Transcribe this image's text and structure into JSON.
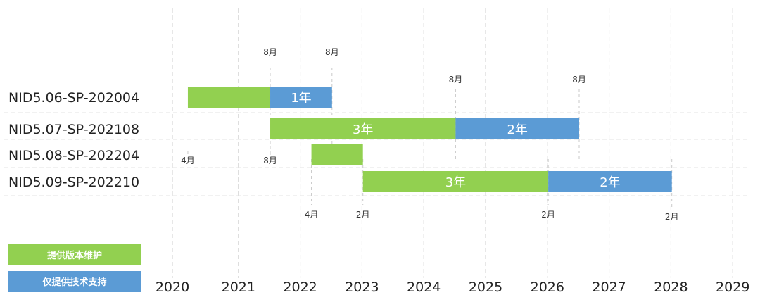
{
  "chart_data": {
    "type": "gantt",
    "years": [
      "2020",
      "2021",
      "2022",
      "2023",
      "2024",
      "2025",
      "2026",
      "2027",
      "2028",
      "2029"
    ],
    "legend": [
      {
        "label": "提供版本维护",
        "color": "#92D050"
      },
      {
        "label": "仅提供技术支持",
        "color": "#5B9BD5"
      }
    ],
    "rows": [
      {
        "label": "NID5.06-SP-202004",
        "segments": [
          {
            "series": 0,
            "start": "2020-04",
            "end": "2021-08",
            "label": ""
          },
          {
            "series": 1,
            "start": "2021-08",
            "end": "2022-08",
            "label": "1年"
          }
        ]
      },
      {
        "label": "NID5.07-SP-202108",
        "segments": [
          {
            "series": 0,
            "start": "2021-08",
            "end": "2024-08",
            "label": "3年"
          },
          {
            "series": 1,
            "start": "2024-08",
            "end": "2026-08",
            "label": "2年"
          }
        ]
      },
      {
        "label": "NID5.08-SP-202204",
        "segments": [
          {
            "series": 0,
            "start": "2022-04",
            "end": "2023-02",
            "label": ""
          }
        ]
      },
      {
        "label": "NID5.09-SP-202210",
        "segments": [
          {
            "series": 0,
            "start": "2023-02",
            "end": "2026-02",
            "label": "3年"
          },
          {
            "series": 1,
            "start": "2026-02",
            "end": "2028-02",
            "label": "2年"
          }
        ]
      }
    ],
    "markers": [
      {
        "date": "2020-04",
        "label": "4月",
        "slot": "mid"
      },
      {
        "date": "2021-08",
        "label": "8月",
        "slot": "top"
      },
      {
        "date": "2021-08",
        "label": "8月",
        "slot": "mid"
      },
      {
        "date": "2022-08",
        "label": "8月",
        "slot": "top"
      },
      {
        "date": "2022-04",
        "label": "4月",
        "slot": "low"
      },
      {
        "date": "2023-02",
        "label": "2月",
        "slot": "low"
      },
      {
        "date": "2024-08",
        "label": "8月",
        "slot": "upper"
      },
      {
        "date": "2026-08",
        "label": "8月",
        "slot": "upper"
      },
      {
        "date": "2026-02",
        "label": "2月",
        "slot": "low"
      },
      {
        "date": "2028-02",
        "label": "2月",
        "slot": "lower"
      }
    ],
    "grid": true,
    "legend_position": "bottom-left"
  }
}
